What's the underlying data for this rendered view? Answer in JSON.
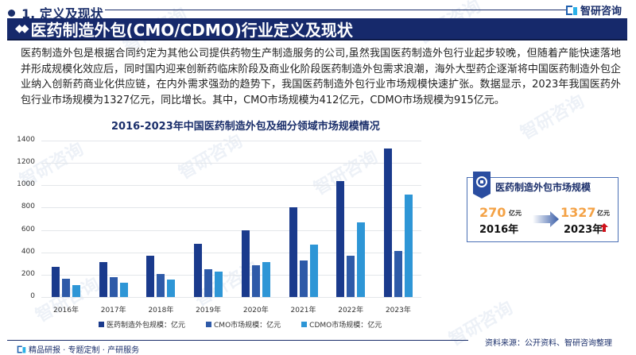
{
  "header": {
    "section_title": "1. 定义及现状",
    "brand": "智研咨询",
    "banner_title": "医药制造外包(CMO/CDMO)行业定义及现状",
    "banner_icon": "diamond-icon"
  },
  "intro": {
    "paragraph": "医药制造外包是根据合同约定为其他公司提供药物生产制造服务的公司,虽然我国医药制造外包行业起步较晚，但随着产能快速落地并形成规模化效应后，同时国内迎来创新药临床阶段及商业化阶段医药制造外包需求浪潮，海外大型药企逐渐将中国医药制造外包企业纳入创新药商业化供应链，在内外需求强劲的趋势下，我国医药制造外包行业市场规模快速扩张。数据显示，2023年我国医药外包行业市场规模为1327亿元，同比增长。其中，CMO市场规模为412亿元，CDMO市场规模为915亿元。"
  },
  "chart_data": {
    "type": "bar",
    "title": "2016-2023年中国医药制造外包及细分领域市场规模情况",
    "xlabel": "",
    "ylabel": "",
    "ylim": [
      0,
      1400
    ],
    "yticks": [
      "0",
      "200",
      "400",
      "600",
      "800",
      "1000",
      "1200",
      "1400"
    ],
    "grid": true,
    "legend_position": "bottom",
    "categories": [
      "2016年",
      "2017年",
      "2018年",
      "2019年",
      "2020年",
      "2021年",
      "2022年",
      "2023年"
    ],
    "series": [
      {
        "name": "医药制造外包规模：亿元",
        "color": "#1a3a8c",
        "values": [
          270,
          311,
          367,
          474,
          600,
          805,
          1035,
          1327
        ]
      },
      {
        "name": "CMO市场规模：亿元",
        "color": "#2e5aa8",
        "values": [
          162,
          176,
          206,
          249,
          282,
          325,
          368,
          412
        ]
      },
      {
        "name": "CDMO市场规模：亿元",
        "color": "#2e96d6",
        "values": [
          104,
          130,
          156,
          225,
          310,
          470,
          666,
          915
        ]
      }
    ]
  },
  "kpi": {
    "title": "医药制造外包市场规模",
    "start_value": "270",
    "start_unit": "亿元",
    "start_year": "2016年",
    "end_value": "1327",
    "end_unit": "亿元",
    "end_year": "2023年",
    "accent_color": "#f4a246",
    "trend": "up-arrow-icon"
  },
  "footer": {
    "tagline": "精品研报 · 专题定制 · 产研服务",
    "source": "资料来源：公开资料、智研咨询整理"
  }
}
